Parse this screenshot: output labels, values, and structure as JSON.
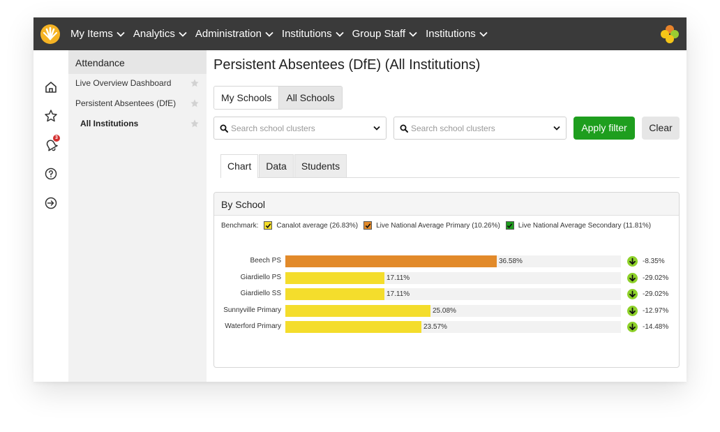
{
  "nav": {
    "items": [
      {
        "label": "My Items"
      },
      {
        "label": "Analytics"
      },
      {
        "label": "Administration"
      },
      {
        "label": "Institutions"
      },
      {
        "label": "Group Staff"
      },
      {
        "label": "Institutions"
      }
    ]
  },
  "rail": {
    "icons": [
      "home-icon",
      "star-icon",
      "bell-icon",
      "help-icon",
      "logout-icon"
    ],
    "notification_count": "3"
  },
  "sidemenu": {
    "header": "Attendance",
    "items": [
      {
        "label": "Live Overview Dashboard"
      },
      {
        "label": "Persistent Absentees (DfE)"
      },
      {
        "label": "All Institutions"
      }
    ]
  },
  "page": {
    "title": "Persistent Absentees (DfE) (All Institutions)"
  },
  "scope": {
    "options": [
      "My Schools",
      "All Schools"
    ],
    "selected": "All Schools"
  },
  "filters": {
    "select1_placeholder": "Search school clusters",
    "select2_placeholder": "Search school clusters",
    "apply_label": "Apply filter",
    "clear_label": "Clear"
  },
  "tabs": [
    {
      "label": "Chart"
    },
    {
      "label": "Data"
    },
    {
      "label": "Students"
    }
  ],
  "panel": {
    "title": "By School"
  },
  "colors": {
    "topbar": "#3a3a3a",
    "apply": "#1e9e1e",
    "canalot": "#f4dd2c",
    "primary": "#e28a2a",
    "secondary": "#1e9e1e",
    "delta": "#8ed12a"
  },
  "chart_data": {
    "type": "bar",
    "orientation": "horizontal",
    "xlim": [
      0,
      58
    ],
    "benchmark_label": "Benchmark:",
    "benchmarks": [
      {
        "name": "Canalot average (26.83%)",
        "color": "#f4dd2c"
      },
      {
        "name": "Live National Average Primary (10.26%)",
        "color": "#e28a2a"
      },
      {
        "name": "Live National Average Secondary (11.81%)",
        "color": "#1e9e1e"
      }
    ],
    "categories": [
      "Beech PS",
      "Giardiello PS",
      "Giardiello SS",
      "Sunnyville Primary",
      "Waterford Primary"
    ],
    "values": [
      36.58,
      17.11,
      17.11,
      25.08,
      23.57
    ],
    "value_labels": [
      "36.58%",
      "17.11%",
      "17.11%",
      "25.08%",
      "23.57%"
    ],
    "bar_colors": [
      "#e28a2a",
      "#f4dd2c",
      "#f4dd2c",
      "#f4dd2c",
      "#f4dd2c"
    ],
    "changes": [
      "-8.35%",
      "-29.02%",
      "-29.02%",
      "-12.97%",
      "-14.48%"
    ]
  }
}
